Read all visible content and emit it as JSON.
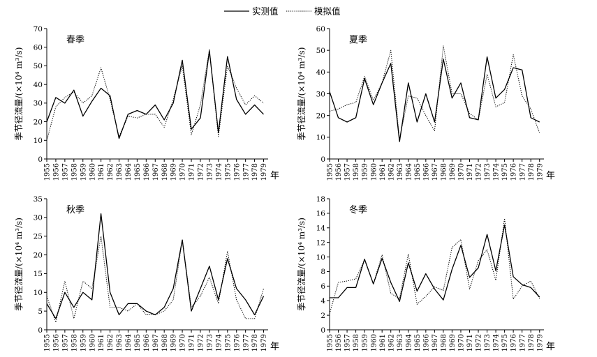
{
  "legend": {
    "observed_label": "实测值",
    "simulated_label": "模拟值"
  },
  "chart_data": [
    {
      "type": "line",
      "title": "春季",
      "xlabel": "年",
      "ylabel": "季节径流量/(×10⁴ m³/s)",
      "x": [
        1955,
        1956,
        1957,
        1958,
        1959,
        1960,
        1961,
        1962,
        1963,
        1964,
        1965,
        1966,
        1967,
        1968,
        1969,
        1970,
        1971,
        1972,
        1973,
        1974,
        1975,
        1976,
        1977,
        1978,
        1979
      ],
      "ylim": [
        0,
        70
      ],
      "yticks": [
        0,
        10,
        20,
        30,
        40,
        50,
        60,
        70
      ],
      "series": [
        {
          "name": "实测值",
          "style": "solid",
          "values": [
            20,
            33,
            30,
            37,
            23,
            31,
            38,
            34,
            11,
            24,
            26,
            24,
            29,
            21,
            30,
            53,
            16,
            22,
            58,
            14,
            55,
            32,
            24,
            29,
            24
          ]
        },
        {
          "name": "模拟值",
          "style": "dotted",
          "values": [
            10,
            28,
            33,
            36,
            30,
            34,
            49,
            32,
            12,
            23,
            22,
            24,
            24,
            17,
            32,
            50,
            13,
            29,
            59,
            12,
            50,
            38,
            29,
            34,
            30
          ]
        }
      ]
    },
    {
      "type": "line",
      "title": "夏季",
      "xlabel": "年",
      "ylabel": "季节径流量/(×10⁴ m³/s)",
      "x": [
        1955,
        1956,
        1957,
        1958,
        1959,
        1960,
        1961,
        1962,
        1963,
        1964,
        1965,
        1966,
        1967,
        1968,
        1969,
        1970,
        1971,
        1972,
        1973,
        1974,
        1975,
        1976,
        1977,
        1978,
        1979
      ],
      "ylim": [
        0,
        60
      ],
      "yticks": [
        0,
        10,
        20,
        30,
        40,
        50,
        60
      ],
      "series": [
        {
          "name": "实测值",
          "style": "solid",
          "values": [
            31,
            19,
            17,
            19,
            37,
            25,
            35,
            44,
            8,
            35,
            17,
            30,
            17,
            46,
            28,
            35,
            19,
            18,
            47,
            28,
            32,
            42,
            41,
            19,
            17
          ]
        },
        {
          "name": "模拟值",
          "style": "dotted",
          "values": [
            22,
            23,
            25,
            26,
            38,
            27,
            35,
            50,
            9,
            29,
            28,
            20,
            13,
            52,
            30,
            30,
            21,
            18,
            39,
            24,
            26,
            48,
            29,
            23,
            12
          ]
        }
      ]
    },
    {
      "type": "line",
      "title": "秋季",
      "xlabel": "年",
      "ylabel": "季节径流量/(×10⁴ m³/s)",
      "x": [
        1955,
        1956,
        1957,
        1958,
        1959,
        1960,
        1961,
        1962,
        1963,
        1964,
        1965,
        1966,
        1967,
        1968,
        1969,
        1970,
        1971,
        1972,
        1973,
        1974,
        1975,
        1976,
        1977,
        1978,
        1979
      ],
      "ylim": [
        0,
        35
      ],
      "yticks": [
        0,
        5,
        10,
        15,
        20,
        25,
        30,
        35
      ],
      "series": [
        {
          "name": "实测值",
          "style": "solid",
          "values": [
            7,
            3,
            10,
            6,
            10,
            8,
            31,
            10,
            4,
            7,
            7,
            5,
            4,
            6,
            11,
            24,
            5,
            11,
            17,
            8,
            19,
            11,
            8,
            4,
            9
          ]
        },
        {
          "name": "模拟值",
          "style": "dotted",
          "values": [
            9,
            2,
            13,
            3,
            13,
            11,
            25,
            6,
            6,
            5,
            7,
            4,
            4,
            5,
            8,
            24,
            6,
            9,
            14,
            7,
            21,
            8,
            3,
            3,
            11
          ]
        }
      ]
    },
    {
      "type": "line",
      "title": "冬季",
      "xlabel": "年",
      "ylabel": "季节径流量/(×10⁴ m³/s)",
      "x": [
        1955,
        1956,
        1957,
        1958,
        1959,
        1960,
        1961,
        1962,
        1963,
        1964,
        1965,
        1966,
        1967,
        1968,
        1969,
        1970,
        1971,
        1972,
        1973,
        1974,
        1975,
        1976,
        1977,
        1978,
        1979
      ],
      "ylim": [
        0,
        18
      ],
      "yticks": [
        0,
        2,
        4,
        6,
        8,
        10,
        12,
        14,
        16,
        18
      ],
      "series": [
        {
          "name": "实测值",
          "style": "solid",
          "values": [
            4.4,
            4.4,
            5.8,
            5.8,
            9.7,
            6.3,
            9.8,
            6.5,
            3.9,
            9.2,
            5.3,
            7.7,
            5.6,
            4.1,
            8.3,
            11.6,
            7.2,
            8.5,
            13.1,
            8.1,
            14.4,
            7.3,
            6.2,
            5.8,
            4.5
          ]
        },
        {
          "name": "模拟值",
          "style": "dotted",
          "values": [
            2.2,
            6.5,
            6.7,
            7.0,
            9.6,
            6.3,
            10.3,
            5.0,
            4.3,
            10.4,
            3.5,
            4.6,
            5.9,
            5.4,
            11.3,
            12.4,
            5.6,
            9.5,
            11.0,
            6.8,
            15.3,
            4.2,
            6.0,
            6.7,
            4.3
          ]
        }
      ]
    }
  ]
}
